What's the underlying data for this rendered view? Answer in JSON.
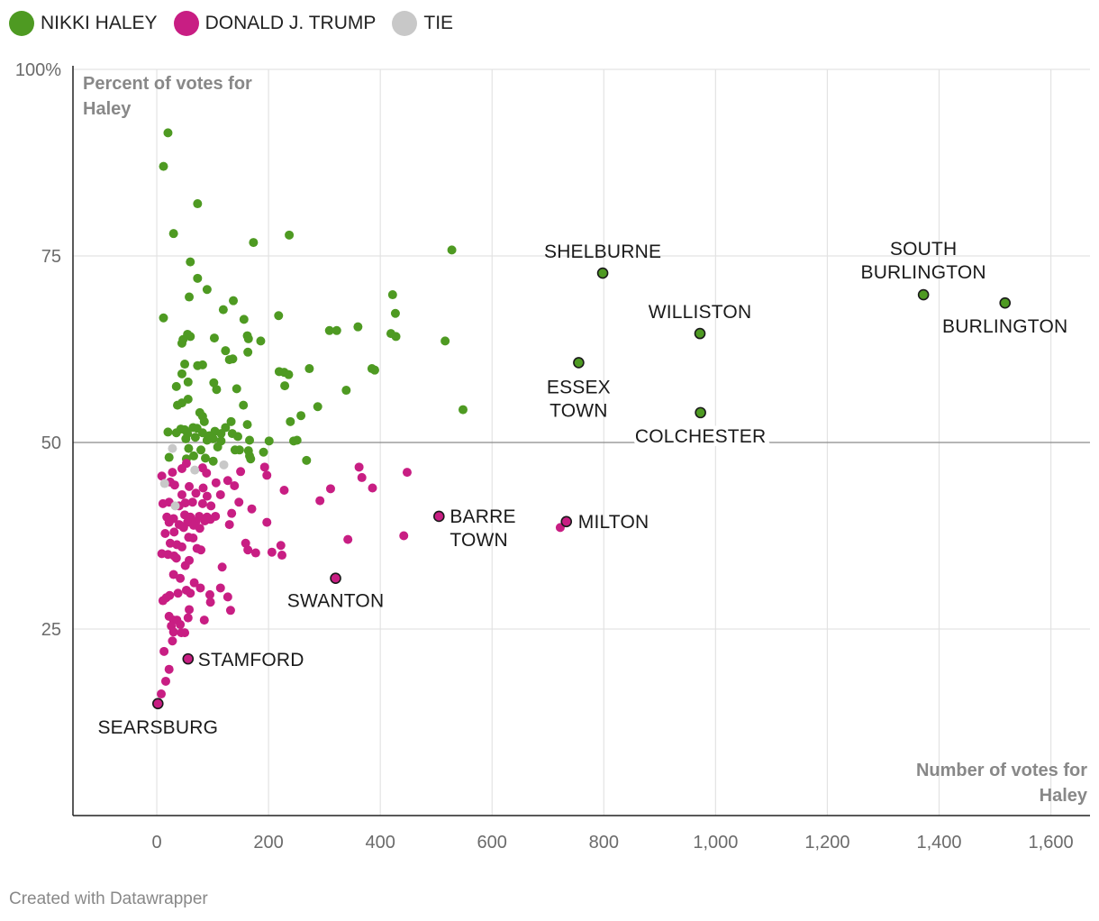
{
  "legend": {
    "haley": {
      "label": "NIKKI HALEY",
      "color": "#4e9a22"
    },
    "trump": {
      "label": "DONALD J. TRUMP",
      "color": "#c81e83"
    },
    "tie": {
      "label": "TIE",
      "color": "#c8c8c8"
    }
  },
  "credit": "Created with Datawrapper",
  "chart_data": {
    "type": "scatter",
    "title": "",
    "xlabel_lines": [
      "Number of votes for",
      "Haley"
    ],
    "ylabel_lines": [
      "Percent of votes for",
      "Haley"
    ],
    "xlim": [
      -150,
      1670
    ],
    "ylim": [
      0,
      100
    ],
    "x_ticks": [
      0,
      200,
      400,
      600,
      800,
      1000,
      1200,
      1400,
      1600
    ],
    "x_tick_labels": [
      "0",
      "200",
      "400",
      "600",
      "800",
      "1,000",
      "1,200",
      "1,400",
      "1,600"
    ],
    "y_ticks": [
      25,
      50,
      75,
      100
    ],
    "y_tick_labels": [
      "25",
      "50",
      "75",
      "100%"
    ],
    "reference_line": 50,
    "series": [
      {
        "name": "NIKKI HALEY",
        "color": "#4e9a22",
        "points": [
          [
            20,
            91.5
          ],
          [
            12,
            87
          ],
          [
            73,
            82
          ],
          [
            30,
            78
          ],
          [
            173,
            76.8
          ],
          [
            237,
            77.8
          ],
          [
            528,
            75.8
          ],
          [
            60,
            74.2
          ],
          [
            73,
            72
          ],
          [
            90,
            70.5
          ],
          [
            58,
            69.5
          ],
          [
            137,
            69
          ],
          [
            119,
            67.8
          ],
          [
            12,
            66.7
          ],
          [
            156,
            66.5
          ],
          [
            218,
            67
          ],
          [
            427,
            67.3
          ],
          [
            422,
            69.8
          ],
          [
            309,
            65
          ],
          [
            322,
            65
          ],
          [
            360,
            65.5
          ],
          [
            419,
            64.6
          ],
          [
            428,
            64.2
          ],
          [
            516,
            63.6
          ],
          [
            55,
            64.5
          ],
          [
            60,
            64.2
          ],
          [
            103,
            64
          ],
          [
            47,
            63.8
          ],
          [
            45,
            63.3
          ],
          [
            162,
            64.3
          ],
          [
            164,
            63.9
          ],
          [
            186,
            63.6
          ],
          [
            123,
            62.3
          ],
          [
            163,
            62.1
          ],
          [
            130,
            61.1
          ],
          [
            136,
            61.2
          ],
          [
            50,
            60.5
          ],
          [
            73,
            60.3
          ],
          [
            82,
            60.4
          ],
          [
            273,
            59.9
          ],
          [
            219,
            59.5
          ],
          [
            228,
            59.4
          ],
          [
            236,
            59.1
          ],
          [
            385,
            59.9
          ],
          [
            390,
            59.7
          ],
          [
            45,
            59.2
          ],
          [
            56,
            58.1
          ],
          [
            102,
            58
          ],
          [
            107,
            57.1
          ],
          [
            143,
            57.2
          ],
          [
            229,
            57.6
          ],
          [
            339,
            57
          ],
          [
            35,
            57.5
          ],
          [
            56,
            55.8
          ],
          [
            37,
            55
          ],
          [
            45,
            55.3
          ],
          [
            155,
            55
          ],
          [
            288,
            54.8
          ],
          [
            548,
            54.4
          ],
          [
            77,
            54
          ],
          [
            82,
            53.5
          ],
          [
            258,
            53.6
          ],
          [
            85,
            52.8
          ],
          [
            133,
            52.8
          ],
          [
            239,
            52.8
          ],
          [
            43,
            51.8
          ],
          [
            50,
            51.7
          ],
          [
            65,
            52
          ],
          [
            72,
            51.9
          ],
          [
            104,
            51.5
          ],
          [
            123,
            52
          ],
          [
            162,
            52.4
          ],
          [
            20,
            51.4
          ],
          [
            35,
            51.3
          ],
          [
            55,
            51.2
          ],
          [
            82,
            51.3
          ],
          [
            94,
            50.9
          ],
          [
            115,
            51.2
          ],
          [
            135,
            51.2
          ],
          [
            145,
            50.8
          ],
          [
            52,
            50.5
          ],
          [
            69,
            50.7
          ],
          [
            90,
            50.3
          ],
          [
            101,
            50.5
          ],
          [
            115,
            50.2
          ],
          [
            166,
            50.3
          ],
          [
            201,
            50.2
          ],
          [
            245,
            50.2
          ],
          [
            251,
            50.3
          ],
          [
            57,
            49.2
          ],
          [
            79,
            49
          ],
          [
            109,
            49.4
          ],
          [
            140,
            49
          ],
          [
            148,
            49
          ],
          [
            164,
            48.9
          ],
          [
            191,
            48.7
          ],
          [
            22,
            48
          ],
          [
            53,
            47.8
          ],
          [
            66,
            48.2
          ],
          [
            87,
            47.9
          ],
          [
            101,
            47.5
          ],
          [
            166,
            48.2
          ],
          [
            168,
            47.8
          ],
          [
            268,
            47.6
          ]
        ]
      },
      {
        "name": "DONALD J. TRUMP",
        "color": "#c81e83",
        "points": [
          [
            9,
            45.5
          ],
          [
            28,
            46
          ],
          [
            45,
            46.5
          ],
          [
            53,
            47.2
          ],
          [
            82,
            46.6
          ],
          [
            89,
            45.9
          ],
          [
            150,
            46.1
          ],
          [
            193,
            46.7
          ],
          [
            197,
            45.6
          ],
          [
            362,
            46.7
          ],
          [
            367,
            45.3
          ],
          [
            448,
            46
          ],
          [
            24,
            44.7
          ],
          [
            32,
            44.3
          ],
          [
            58,
            44.1
          ],
          [
            83,
            43.9
          ],
          [
            106,
            44.6
          ],
          [
            127,
            44.9
          ],
          [
            139,
            44.2
          ],
          [
            228,
            43.6
          ],
          [
            311,
            43.8
          ],
          [
            386,
            43.9
          ],
          [
            45,
            43
          ],
          [
            70,
            43.2
          ],
          [
            90,
            42.8
          ],
          [
            114,
            43
          ],
          [
            292,
            42.2
          ],
          [
            11,
            41.8
          ],
          [
            22,
            42
          ],
          [
            40,
            41.5
          ],
          [
            51,
            41.9
          ],
          [
            64,
            42
          ],
          [
            82,
            41.8
          ],
          [
            97,
            41.5
          ],
          [
            147,
            42
          ],
          [
            170,
            41.1
          ],
          [
            18,
            40
          ],
          [
            30,
            39.8
          ],
          [
            50,
            40.3
          ],
          [
            60,
            40
          ],
          [
            76,
            40.1
          ],
          [
            90,
            40
          ],
          [
            105,
            40.1
          ],
          [
            134,
            40.5
          ],
          [
            22,
            39.3
          ],
          [
            40,
            39
          ],
          [
            55,
            39.3
          ],
          [
            70,
            39.4
          ],
          [
            86,
            39.5
          ],
          [
            96,
            39.7
          ],
          [
            197,
            39.3
          ],
          [
            48,
            38.6
          ],
          [
            66,
            38.9
          ],
          [
            77,
            38.5
          ],
          [
            130,
            39
          ],
          [
            722,
            38.6
          ],
          [
            15,
            37.8
          ],
          [
            31,
            38
          ],
          [
            57,
            37.3
          ],
          [
            65,
            37.2
          ],
          [
            442,
            37.5
          ],
          [
            342,
            37
          ],
          [
            24,
            36.5
          ],
          [
            36,
            36.3
          ],
          [
            45,
            36
          ],
          [
            72,
            35.8
          ],
          [
            79,
            35.6
          ],
          [
            159,
            36.5
          ],
          [
            163,
            35.6
          ],
          [
            177,
            35.2
          ],
          [
            206,
            35.3
          ],
          [
            222,
            36.2
          ],
          [
            224,
            34.9
          ],
          [
            9,
            35.1
          ],
          [
            20,
            35
          ],
          [
            31,
            34.8
          ],
          [
            35,
            34.5
          ],
          [
            58,
            34.2
          ],
          [
            51,
            33.5
          ],
          [
            117,
            33.3
          ],
          [
            30,
            32.3
          ],
          [
            42,
            31.8
          ],
          [
            67,
            31.2
          ],
          [
            78,
            30.5
          ],
          [
            53,
            30.2
          ],
          [
            114,
            30.5
          ],
          [
            23,
            29.5
          ],
          [
            38,
            29.8
          ],
          [
            60,
            29.8
          ],
          [
            95,
            29.6
          ],
          [
            127,
            29.3
          ],
          [
            11,
            28.8
          ],
          [
            17,
            29.2
          ],
          [
            96,
            28.6
          ],
          [
            58,
            27.6
          ],
          [
            132,
            27.5
          ],
          [
            22,
            26.7
          ],
          [
            30,
            26.2
          ],
          [
            36,
            26.2
          ],
          [
            56,
            26.5
          ],
          [
            85,
            26.2
          ],
          [
            42,
            25.6
          ],
          [
            26,
            25.4
          ],
          [
            30,
            24.6
          ],
          [
            44,
            24.5
          ],
          [
            50,
            24.5
          ],
          [
            28,
            23.4
          ],
          [
            13,
            22
          ],
          [
            22,
            19.6
          ],
          [
            16,
            18
          ],
          [
            8,
            16.3
          ]
        ]
      },
      {
        "name": "TIE",
        "color": "#c8c8c8",
        "points": [
          [
            28,
            49.2
          ],
          [
            14,
            44.5
          ],
          [
            33,
            41.5
          ],
          [
            68,
            46.3
          ],
          [
            120,
            47
          ]
        ]
      }
    ],
    "labeled_points": [
      {
        "name": "SHELBURNE",
        "lines": [
          "SHELBURNE"
        ],
        "x": 798,
        "y": 72.7,
        "party": "haley"
      },
      {
        "name": "SOUTH BURLINGTON",
        "lines": [
          "SOUTH",
          "BURLINGTON"
        ],
        "x": 1372,
        "y": 69.8,
        "party": "haley"
      },
      {
        "name": "BURLINGTON",
        "lines": [
          "BURLINGTON"
        ],
        "x": 1518,
        "y": 68.7,
        "party": "haley"
      },
      {
        "name": "WILLISTON",
        "lines": [
          "WILLISTON"
        ],
        "x": 972,
        "y": 64.6,
        "party": "haley"
      },
      {
        "name": "ESSEX TOWN",
        "lines": [
          "ESSEX",
          "TOWN"
        ],
        "x": 755,
        "y": 60.7,
        "party": "haley"
      },
      {
        "name": "COLCHESTER",
        "lines": [
          "COLCHESTER"
        ],
        "x": 973,
        "y": 54,
        "party": "haley"
      },
      {
        "name": "BARRE TOWN",
        "lines": [
          "BARRE",
          "TOWN"
        ],
        "x": 505,
        "y": 40.1,
        "party": "trump"
      },
      {
        "name": "MILTON",
        "lines": [
          "MILTON"
        ],
        "x": 733,
        "y": 39.4,
        "party": "trump"
      },
      {
        "name": "SWANTON",
        "lines": [
          "SWANTON"
        ],
        "x": 320,
        "y": 31.8,
        "party": "trump"
      },
      {
        "name": "STAMFORD",
        "lines": [
          "STAMFORD"
        ],
        "x": 56,
        "y": 21,
        "party": "trump"
      },
      {
        "name": "SEARSBURG",
        "lines": [
          "SEARSBURG"
        ],
        "x": 2,
        "y": 15,
        "party": "trump"
      }
    ]
  }
}
